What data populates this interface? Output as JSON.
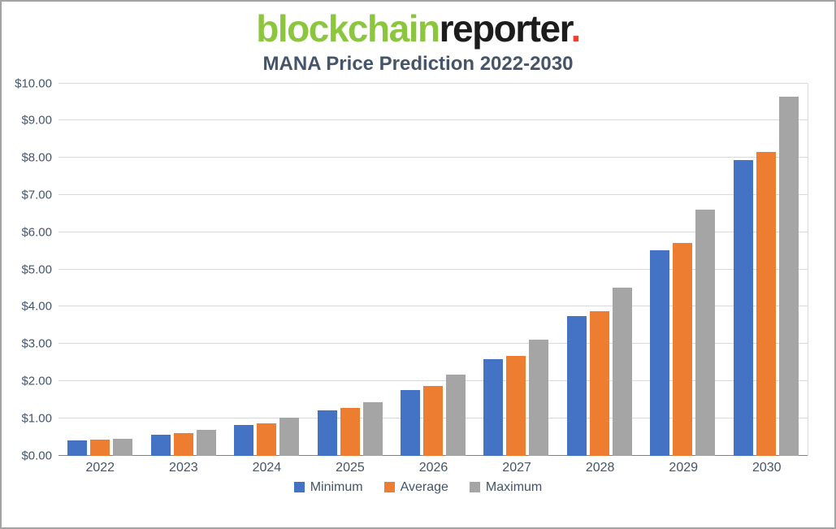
{
  "logo": {
    "part1": "blockchain",
    "part2": "reporter",
    "dot": "."
  },
  "title": "MANA Price Prediction 2022-2030",
  "chart_data": {
    "type": "bar",
    "title": "MANA Price Prediction 2022-2030",
    "xlabel": "",
    "ylabel": "",
    "ylim": [
      0,
      10
    ],
    "ytick_step": 1,
    "ytick_labels": [
      "$0.00",
      "$1.00",
      "$2.00",
      "$3.00",
      "$4.00",
      "$5.00",
      "$6.00",
      "$7.00",
      "$8.00",
      "$9.00",
      "$10.00"
    ],
    "grid": true,
    "legend_position": "bottom",
    "categories": [
      "2022",
      "2023",
      "2024",
      "2025",
      "2026",
      "2027",
      "2028",
      "2029",
      "2030"
    ],
    "series": [
      {
        "name": "Minimum",
        "color": "#4472c4",
        "values": [
          0.4,
          0.57,
          0.82,
          1.22,
          1.77,
          2.6,
          3.75,
          5.52,
          7.93
        ]
      },
      {
        "name": "Average",
        "color": "#ed7d31",
        "values": [
          0.43,
          0.6,
          0.86,
          1.27,
          1.86,
          2.68,
          3.88,
          5.72,
          8.15
        ]
      },
      {
        "name": "Maximum",
        "color": "#a5a5a5",
        "values": [
          0.46,
          0.7,
          1.02,
          1.44,
          2.17,
          3.12,
          4.51,
          6.61,
          9.65
        ]
      }
    ]
  }
}
